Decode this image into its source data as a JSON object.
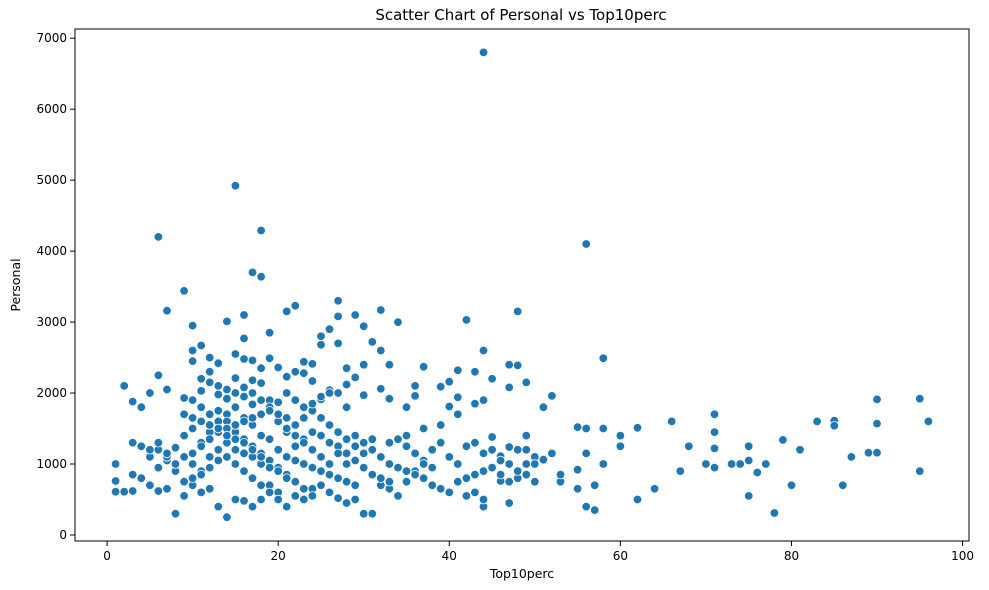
{
  "chart_data": {
    "type": "scatter",
    "title": "Scatter Chart of Personal vs Top10perc",
    "xlabel": "Top10perc",
    "ylabel": "Personal",
    "xlim": [
      -3.75,
      100.75
    ],
    "ylim": [
      -85,
      7130
    ],
    "xticks": [
      0,
      20,
      40,
      60,
      80,
      100
    ],
    "yticks": [
      0,
      1000,
      2000,
      3000,
      4000,
      5000,
      6000,
      7000
    ],
    "grid": false,
    "points": [
      [
        44,
        6800
      ],
      [
        15,
        4920
      ],
      [
        18,
        4290
      ],
      [
        6,
        4200
      ],
      [
        56,
        4100
      ],
      [
        17,
        3700
      ],
      [
        18,
        3640
      ],
      [
        9,
        3440
      ],
      [
        27,
        3300
      ],
      [
        22,
        3230
      ],
      [
        32,
        3170
      ],
      [
        7,
        3160
      ],
      [
        48,
        3150
      ],
      [
        21,
        3150
      ],
      [
        29,
        3100
      ],
      [
        16,
        3100
      ],
      [
        27,
        3080
      ],
      [
        42,
        3030
      ],
      [
        14,
        3010
      ],
      [
        34,
        3000
      ],
      [
        10,
        2950
      ],
      [
        30,
        2940
      ],
      [
        26,
        2900
      ],
      [
        19,
        2850
      ],
      [
        25,
        2800
      ],
      [
        16,
        2770
      ],
      [
        31,
        2720
      ],
      [
        27,
        2700
      ],
      [
        25,
        2680
      ],
      [
        11,
        2670
      ],
      [
        44,
        2600
      ],
      [
        10,
        2600
      ],
      [
        32,
        2600
      ],
      [
        15,
        2550
      ],
      [
        12,
        2500
      ],
      [
        58,
        2490
      ],
      [
        19,
        2490
      ],
      [
        16,
        2480
      ],
      [
        17,
        2460
      ],
      [
        10,
        2450
      ],
      [
        23,
        2440
      ],
      [
        13,
        2420
      ],
      [
        24,
        2410
      ],
      [
        30,
        2400
      ],
      [
        33,
        2400
      ],
      [
        47,
        2400
      ],
      [
        48,
        2390
      ],
      [
        37,
        2370
      ],
      [
        20,
        2360
      ],
      [
        28,
        2350
      ],
      [
        18,
        2350
      ],
      [
        41,
        2320
      ],
      [
        43,
        2300
      ],
      [
        22,
        2300
      ],
      [
        12,
        2300
      ],
      [
        23,
        2280
      ],
      [
        6,
        2250
      ],
      [
        21,
        2230
      ],
      [
        29,
        2220
      ],
      [
        15,
        2210
      ],
      [
        11,
        2200
      ],
      [
        45,
        2200
      ],
      [
        17,
        2180
      ],
      [
        24,
        2170
      ],
      [
        40,
        2160
      ],
      [
        49,
        2150
      ],
      [
        18,
        2140
      ],
      [
        28,
        2120
      ],
      [
        36,
        2100
      ],
      [
        2,
        2100
      ],
      [
        39,
        2090
      ],
      [
        16,
        2080
      ],
      [
        47,
        2080
      ],
      [
        32,
        2060
      ],
      [
        7,
        2050
      ],
      [
        26,
        2040
      ],
      [
        11,
        2030
      ],
      [
        21,
        2000
      ],
      [
        5,
        2000
      ],
      [
        27,
        2000
      ],
      [
        13,
        1980
      ],
      [
        30,
        1970
      ],
      [
        36,
        1960
      ],
      [
        52,
        1960
      ],
      [
        41,
        1940
      ],
      [
        9,
        1930
      ],
      [
        33,
        1920
      ],
      [
        14,
        1920
      ],
      [
        25,
        1910
      ],
      [
        19,
        1900
      ],
      [
        90,
        1910
      ],
      [
        95,
        1920
      ],
      [
        44,
        1900
      ],
      [
        3,
        1880
      ],
      [
        20,
        1870
      ],
      [
        43,
        1850
      ],
      [
        17,
        1840
      ],
      [
        4,
        1800
      ],
      [
        28,
        1800
      ],
      [
        35,
        1800
      ],
      [
        40,
        1810
      ],
      [
        71,
        1700
      ],
      [
        55,
        1520
      ],
      [
        56,
        1500
      ],
      [
        58,
        1500
      ],
      [
        62,
        1510
      ],
      [
        66,
        1600
      ],
      [
        83,
        1600
      ],
      [
        85,
        1610
      ],
      [
        96,
        1600
      ],
      [
        90,
        1570
      ],
      [
        85,
        1540
      ],
      [
        71,
        1450
      ],
      [
        75,
        1250
      ],
      [
        68,
        1250
      ],
      [
        60,
        1250
      ],
      [
        56,
        1150
      ],
      [
        71,
        1220
      ],
      [
        81,
        1200
      ],
      [
        79,
        1340
      ],
      [
        87,
        1100
      ],
      [
        89,
        1160
      ],
      [
        90,
        1160
      ],
      [
        74,
        1000
      ],
      [
        76,
        880
      ],
      [
        70,
        1000
      ],
      [
        71,
        950
      ],
      [
        67,
        900
      ],
      [
        75,
        1050
      ],
      [
        77,
        1000
      ],
      [
        73,
        1000
      ],
      [
        95,
        900
      ],
      [
        75,
        550
      ],
      [
        80,
        700
      ],
      [
        86,
        700
      ],
      [
        78,
        310
      ],
      [
        64,
        650
      ],
      [
        62,
        500
      ],
      [
        57,
        350
      ],
      [
        56,
        400
      ],
      [
        55,
        650
      ],
      [
        57,
        700
      ],
      [
        53,
        750
      ],
      [
        58,
        1000
      ],
      [
        60,
        1400
      ],
      [
        55,
        920
      ],
      [
        53,
        850
      ],
      [
        50,
        750
      ],
      [
        49,
        1200
      ],
      [
        50,
        1100
      ],
      [
        51,
        1060
      ],
      [
        52,
        1150
      ],
      [
        45,
        1380
      ],
      [
        46,
        1110
      ],
      [
        47,
        1240
      ],
      [
        49,
        1000
      ],
      [
        48,
        800
      ],
      [
        46,
        760
      ],
      [
        47,
        450
      ],
      [
        44,
        400
      ],
      [
        44,
        500
      ],
      [
        43,
        600
      ],
      [
        42,
        550
      ],
      [
        41,
        1000
      ],
      [
        40,
        1100
      ],
      [
        39,
        1300
      ],
      [
        38,
        1200
      ],
      [
        37,
        1050
      ],
      [
        36,
        900
      ],
      [
        35,
        750
      ],
      [
        34,
        550
      ],
      [
        33,
        650
      ],
      [
        32,
        700
      ],
      [
        31,
        300
      ],
      [
        30,
        300
      ],
      [
        29,
        500
      ],
      [
        28,
        450
      ],
      [
        27,
        520
      ],
      [
        26,
        600
      ],
      [
        25,
        700
      ],
      [
        24,
        650
      ],
      [
        23,
        500
      ],
      [
        22,
        550
      ],
      [
        21,
        400
      ],
      [
        20,
        600
      ],
      [
        19,
        700
      ],
      [
        18,
        500
      ],
      [
        17,
        400
      ],
      [
        16,
        480
      ],
      [
        15,
        500
      ],
      [
        14,
        250
      ],
      [
        13,
        400
      ],
      [
        12,
        650
      ],
      [
        11,
        600
      ],
      [
        10,
        700
      ],
      [
        9,
        550
      ],
      [
        8,
        300
      ],
      [
        7,
        650
      ],
      [
        6,
        620
      ],
      [
        5,
        700
      ],
      [
        4,
        800
      ],
      [
        3,
        850
      ],
      [
        2,
        610
      ],
      [
        1,
        610
      ],
      [
        1,
        1000
      ],
      [
        1,
        760
      ],
      [
        3,
        620
      ],
      [
        5,
        1100
      ],
      [
        6,
        1200
      ],
      [
        7,
        1050
      ],
      [
        8,
        1230
      ],
      [
        9,
        1400
      ],
      [
        10,
        1500
      ],
      [
        11,
        1300
      ],
      [
        12,
        1450
      ],
      [
        13,
        1600
      ],
      [
        14,
        1700
      ],
      [
        15,
        1800
      ],
      [
        16,
        1650
      ],
      [
        17,
        1550
      ],
      [
        18,
        1400
      ],
      [
        19,
        1350
      ],
      [
        20,
        1200
      ],
      [
        21,
        1100
      ],
      [
        22,
        1050
      ],
      [
        23,
        1000
      ],
      [
        24,
        950
      ],
      [
        25,
        900
      ],
      [
        26,
        850
      ],
      [
        27,
        800
      ],
      [
        28,
        750
      ],
      [
        29,
        700
      ],
      [
        30,
        1300
      ],
      [
        31,
        1200
      ],
      [
        32,
        1100
      ],
      [
        33,
        1000
      ],
      [
        34,
        950
      ],
      [
        35,
        900
      ],
      [
        36,
        850
      ],
      [
        37,
        800
      ],
      [
        38,
        700
      ],
      [
        39,
        650
      ],
      [
        40,
        600
      ],
      [
        41,
        750
      ],
      [
        42,
        800
      ],
      [
        43,
        850
      ],
      [
        44,
        900
      ],
      [
        45,
        950
      ],
      [
        46,
        850
      ],
      [
        47,
        750
      ],
      [
        48,
        900
      ],
      [
        49,
        850
      ],
      [
        50,
        1000
      ],
      [
        10,
        1900
      ],
      [
        11,
        1800
      ],
      [
        12,
        1700
      ],
      [
        13,
        1750
      ],
      [
        14,
        1600
      ],
      [
        15,
        1450
      ],
      [
        16,
        1350
      ],
      [
        17,
        1250
      ],
      [
        18,
        1150
      ],
      [
        19,
        1050
      ],
      [
        20,
        950
      ],
      [
        21,
        850
      ],
      [
        22,
        750
      ],
      [
        23,
        650
      ],
      [
        24,
        550
      ],
      [
        25,
        1400
      ],
      [
        26,
        1300
      ],
      [
        27,
        1250
      ],
      [
        28,
        1150
      ],
      [
        29,
        1050
      ],
      [
        30,
        950
      ],
      [
        31,
        850
      ],
      [
        32,
        800
      ],
      [
        33,
        750
      ],
      [
        34,
        1350
      ],
      [
        35,
        1250
      ],
      [
        36,
        1150
      ],
      [
        37,
        1000
      ],
      [
        38,
        950
      ],
      [
        10,
        1000
      ],
      [
        11,
        900
      ],
      [
        12,
        1100
      ],
      [
        13,
        1200
      ],
      [
        14,
        1300
      ],
      [
        15,
        1000
      ],
      [
        16,
        900
      ],
      [
        17,
        800
      ],
      [
        18,
        700
      ],
      [
        19,
        600
      ],
      [
        20,
        500
      ],
      [
        21,
        1450
      ],
      [
        22,
        1550
      ],
      [
        23,
        1650
      ],
      [
        24,
        1750
      ],
      [
        25,
        1650
      ],
      [
        26,
        1550
      ],
      [
        27,
        1450
      ],
      [
        28,
        1350
      ],
      [
        29,
        1250
      ],
      [
        30,
        1150
      ],
      [
        15,
        1200
      ],
      [
        16,
        1150
      ],
      [
        17,
        1100
      ],
      [
        18,
        1000
      ],
      [
        19,
        950
      ],
      [
        20,
        900
      ],
      [
        21,
        800
      ],
      [
        22,
        1250
      ],
      [
        23,
        1350
      ],
      [
        24,
        1450
      ],
      [
        14,
        1100
      ],
      [
        13,
        1050
      ],
      [
        12,
        950
      ],
      [
        11,
        850
      ],
      [
        10,
        800
      ],
      [
        9,
        750
      ],
      [
        8,
        900
      ],
      [
        7,
        1100
      ],
      [
        6,
        950
      ],
      [
        5,
        1200
      ],
      [
        4,
        1250
      ],
      [
        3,
        1300
      ],
      [
        2,
        2100
      ],
      [
        26,
        1000
      ],
      [
        28,
        1000
      ],
      [
        25,
        1100
      ],
      [
        27,
        1150
      ],
      [
        29,
        1400
      ],
      [
        31,
        1350
      ],
      [
        33,
        1300
      ],
      [
        35,
        1400
      ],
      [
        37,
        1500
      ],
      [
        39,
        1550
      ],
      [
        41,
        1700
      ],
      [
        42,
        1250
      ],
      [
        43,
        1300
      ],
      [
        44,
        1150
      ],
      [
        45,
        1200
      ],
      [
        46,
        1050
      ],
      [
        47,
        1000
      ],
      [
        48,
        1200
      ],
      [
        49,
        1400
      ],
      [
        51,
        1800
      ],
      [
        20,
        1600
      ],
      [
        21,
        1500
      ],
      [
        22,
        1400
      ],
      [
        23,
        1300
      ],
      [
        24,
        1200
      ],
      [
        19,
        1800
      ],
      [
        18,
        1700
      ],
      [
        17,
        1650
      ],
      [
        16,
        1600
      ],
      [
        15,
        1550
      ],
      [
        14,
        1500
      ],
      [
        13,
        1450
      ],
      [
        12,
        1350
      ],
      [
        11,
        1250
      ],
      [
        10,
        1150
      ],
      [
        9,
        1100
      ],
      [
        8,
        1000
      ],
      [
        7,
        1150
      ],
      [
        6,
        1300
      ],
      [
        22,
        1900
      ],
      [
        23,
        1800
      ],
      [
        24,
        1850
      ],
      [
        25,
        1950
      ],
      [
        26,
        2000
      ],
      [
        12,
        2150
      ],
      [
        13,
        2100
      ],
      [
        14,
        2050
      ],
      [
        15,
        2000
      ],
      [
        16,
        1950
      ],
      [
        17,
        2000
      ],
      [
        18,
        1900
      ],
      [
        19,
        1750
      ],
      [
        20,
        1700
      ],
      [
        21,
        1650
      ],
      [
        9,
        1700
      ],
      [
        10,
        1650
      ],
      [
        11,
        1600
      ],
      [
        12,
        1550
      ],
      [
        13,
        1500
      ],
      [
        14,
        1400
      ],
      [
        15,
        1350
      ],
      [
        16,
        1300
      ],
      [
        17,
        1200
      ],
      [
        18,
        1100
      ]
    ]
  }
}
